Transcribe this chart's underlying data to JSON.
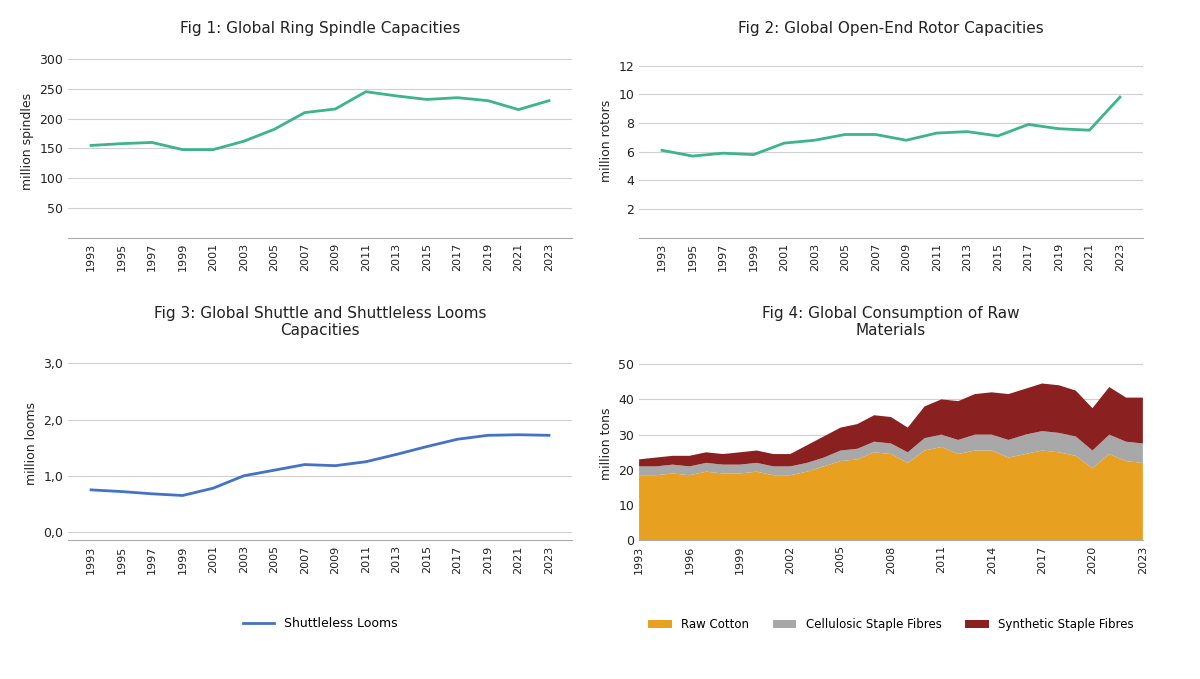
{
  "fig1_title": "Fig 1: Global Ring Spindle Capacities",
  "fig2_title": "Fig 2: Global Open-End Rotor Capacities",
  "fig3_title": "Fig 3: Global Shuttle and Shuttleless Looms\nCapacities",
  "fig4_title": "Fig 4: Global Consumption of Raw\nMaterials",
  "years": [
    1993,
    1995,
    1997,
    1999,
    2001,
    2003,
    2005,
    2007,
    2009,
    2011,
    2013,
    2015,
    2017,
    2019,
    2021,
    2023
  ],
  "fig1_data": [
    155,
    158,
    160,
    148,
    148,
    162,
    182,
    210,
    216,
    245,
    238,
    232,
    235,
    230,
    215,
    230
  ],
  "fig2_data": [
    6.1,
    5.7,
    5.9,
    5.8,
    6.6,
    6.8,
    7.2,
    7.2,
    6.8,
    7.3,
    7.4,
    7.1,
    7.9,
    7.6,
    7.5,
    9.8
  ],
  "fig3_data": [
    0.75,
    0.72,
    0.68,
    0.65,
    0.78,
    1.0,
    1.1,
    1.2,
    1.18,
    1.25,
    1.38,
    1.52,
    1.65,
    1.72,
    1.73,
    1.72
  ],
  "fig4_years": [
    1993,
    1994,
    1995,
    1996,
    1997,
    1998,
    1999,
    2000,
    2001,
    2002,
    2003,
    2004,
    2005,
    2006,
    2007,
    2008,
    2009,
    2010,
    2011,
    2012,
    2013,
    2014,
    2015,
    2016,
    2017,
    2018,
    2019,
    2020,
    2021,
    2022,
    2023
  ],
  "fig4_cotton": [
    18.5,
    18.5,
    19.0,
    18.5,
    19.5,
    19.0,
    19.0,
    19.5,
    18.5,
    18.5,
    19.5,
    21.0,
    22.5,
    23.0,
    25.0,
    24.5,
    22.0,
    25.5,
    26.5,
    24.5,
    25.5,
    25.5,
    23.5,
    24.5,
    25.5,
    25.0,
    24.0,
    20.5,
    24.5,
    22.5,
    22.0
  ],
  "fig4_cellulosic": [
    2.5,
    2.5,
    2.5,
    2.5,
    2.5,
    2.5,
    2.5,
    2.5,
    2.5,
    2.5,
    2.5,
    2.5,
    3.0,
    3.0,
    3.0,
    3.0,
    3.0,
    3.5,
    3.5,
    4.0,
    4.5,
    4.5,
    5.0,
    5.5,
    5.5,
    5.5,
    5.5,
    5.0,
    5.5,
    5.5,
    5.5
  ],
  "fig4_synthetic": [
    2.0,
    2.5,
    2.5,
    3.0,
    3.0,
    3.0,
    3.5,
    3.5,
    3.5,
    3.5,
    5.0,
    6.0,
    6.5,
    7.0,
    7.5,
    7.5,
    7.0,
    9.0,
    10.0,
    11.0,
    11.5,
    12.0,
    13.0,
    13.0,
    13.5,
    13.5,
    13.0,
    12.0,
    13.5,
    12.5,
    13.0
  ],
  "line_color_green": "#3cb48c",
  "line_color_blue": "#4472c4",
  "color_cotton": "#e8a020",
  "color_cellulosic": "#a8a8a8",
  "color_synthetic": "#8b2020",
  "bg_color": "#ffffff",
  "plot_bg_color": "#ffffff",
  "grid_color": "#d0d0d0",
  "fig1_yticks": [
    50,
    100,
    150,
    200,
    250,
    300
  ],
  "fig2_yticks": [
    2,
    4,
    6,
    8,
    10,
    12
  ],
  "fig3_yticks": [
    0.0,
    1.0,
    2.0,
    3.0
  ],
  "fig4_yticks": [
    0,
    10,
    20,
    30,
    40,
    50
  ],
  "fig4_tick_years": [
    1993,
    1996,
    1999,
    2002,
    2005,
    2008,
    2011,
    2014,
    2017,
    2020,
    2023
  ]
}
